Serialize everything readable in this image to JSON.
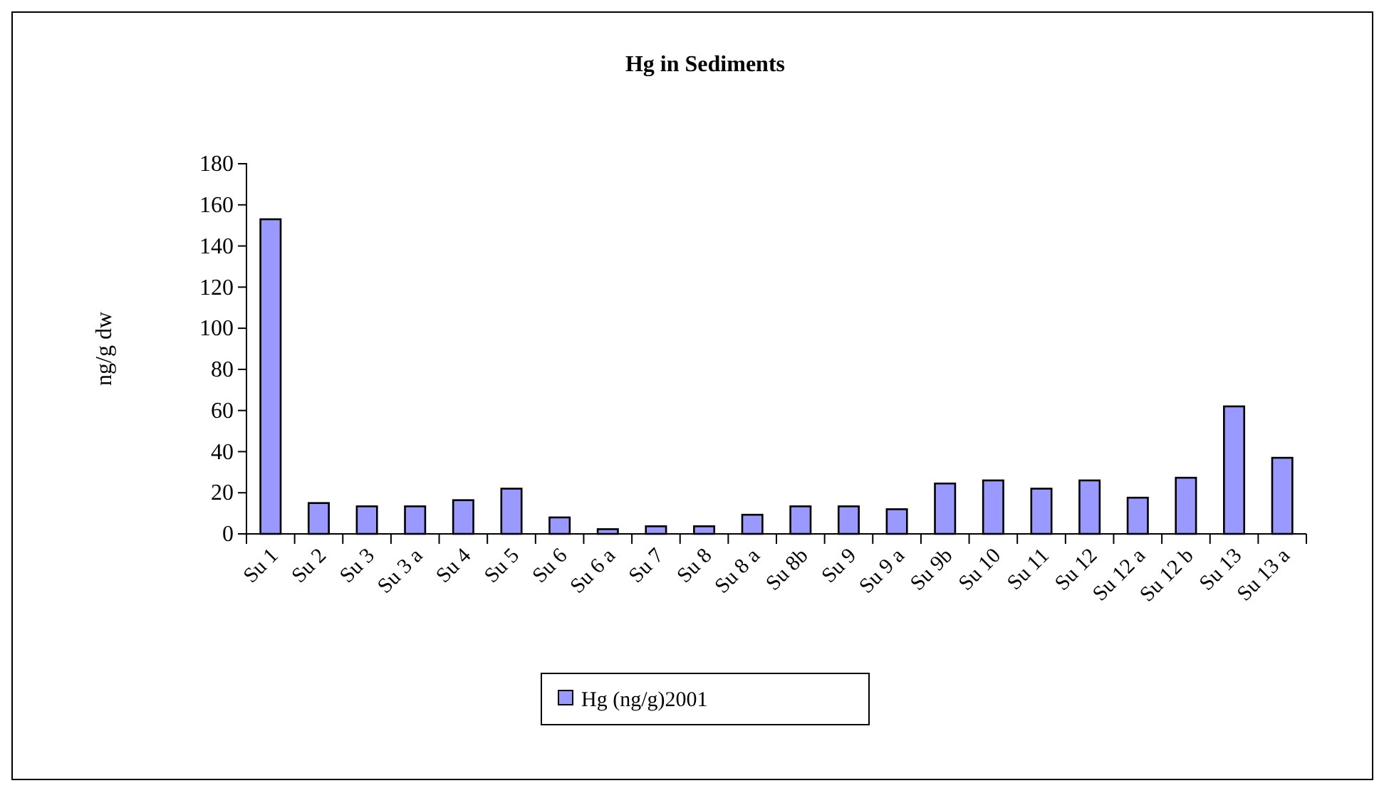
{
  "chart_data": {
    "type": "bar",
    "title": "Hg in Sediments",
    "ylabel": "ng/g dw",
    "categories": [
      "Su 1",
      "Su 2",
      "Su 3",
      "Su 3 a",
      "Su 4",
      "Su 5",
      "Su 6",
      "Su 6 a",
      "Su 7",
      "Su 8",
      "Su 8 a",
      "Su 8b",
      "Su 9",
      "Su 9 a",
      "Su 9b",
      "Su 10",
      "Su 11",
      "Su 12",
      "Su 12 a",
      "Su 12 b",
      "Su 13",
      "Su 13 a"
    ],
    "series": [
      {
        "name": "Hg (ng/g)2001",
        "color": "#9999ff",
        "values": [
          153,
          15,
          13.4,
          13.4,
          16.4,
          22,
          8,
          2.3,
          3.7,
          3.7,
          9.3,
          13.4,
          13.4,
          12,
          24.5,
          26,
          22,
          26,
          17.6,
          27.3,
          62,
          37
        ]
      }
    ],
    "ylim": [
      0,
      180
    ],
    "yticks": [
      0,
      20,
      40,
      60,
      80,
      100,
      120,
      140,
      160,
      180
    ],
    "grid": false,
    "legend": "bottom"
  }
}
